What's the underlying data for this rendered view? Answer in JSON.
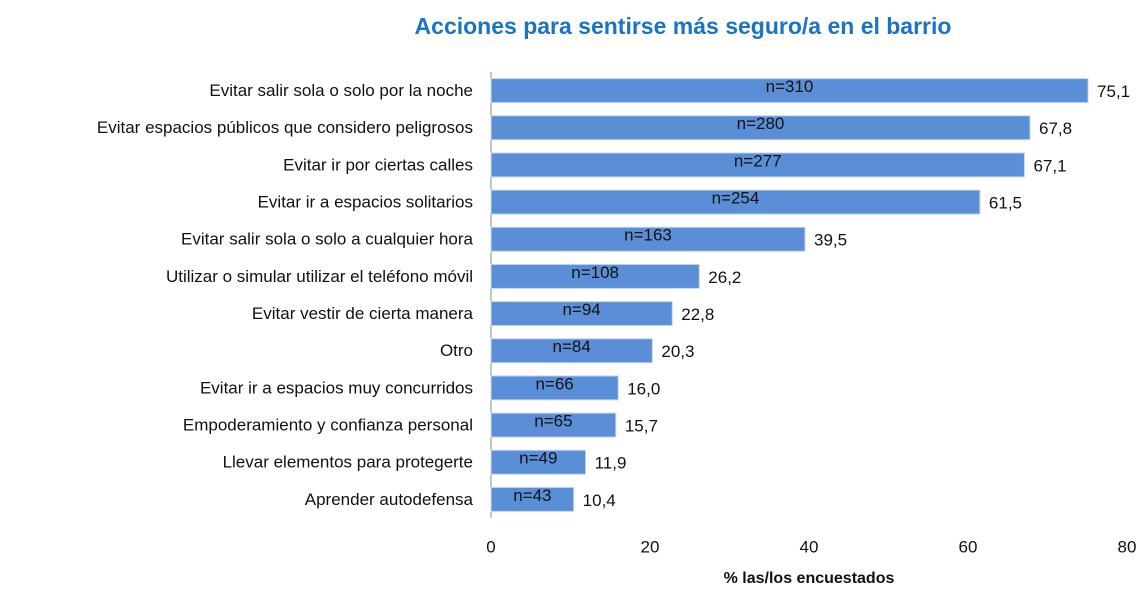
{
  "chart_data": {
    "type": "bar",
    "orientation": "horizontal",
    "title": "Acciones para sentirse más seguro/a en el barrio",
    "xlabel": "% las/los encuestados",
    "categories": [
      "Evitar salir sola o solo por la noche",
      "Evitar espacios públicos que considero peligrosos",
      "Evitar ir por ciertas calles",
      "Evitar ir a espacios solitarios",
      "Evitar salir sola o solo a cualquier hora",
      "Utilizar o simular utilizar el teléfono móvil",
      "Evitar vestir de cierta manera",
      "Otro",
      "Evitar ir a espacios muy concurridos",
      "Empoderamiento y confianza personal",
      "Llevar elementos para protegerte",
      "Aprender autodefensa"
    ],
    "values": [
      75.1,
      67.8,
      67.1,
      61.5,
      39.5,
      26.2,
      22.8,
      20.3,
      16.0,
      15.7,
      11.9,
      10.4
    ],
    "value_labels": [
      "75,1",
      "67,8",
      "67,1",
      "61,5",
      "39,5",
      "26,2",
      "22,8",
      "20,3",
      "16,0",
      "15,7",
      "11,9",
      "10,4"
    ],
    "n_labels": [
      "n=310",
      "n=280",
      "n=277",
      "n=254",
      "n=163",
      "n=108",
      "n=94",
      "n=84",
      "n=66",
      "n=65",
      "n=49",
      "n=43"
    ],
    "color": "#5a8fd8",
    "xlim": [
      0,
      80
    ],
    "xticks": [
      0,
      20,
      40,
      60,
      80
    ],
    "grid": false
  }
}
